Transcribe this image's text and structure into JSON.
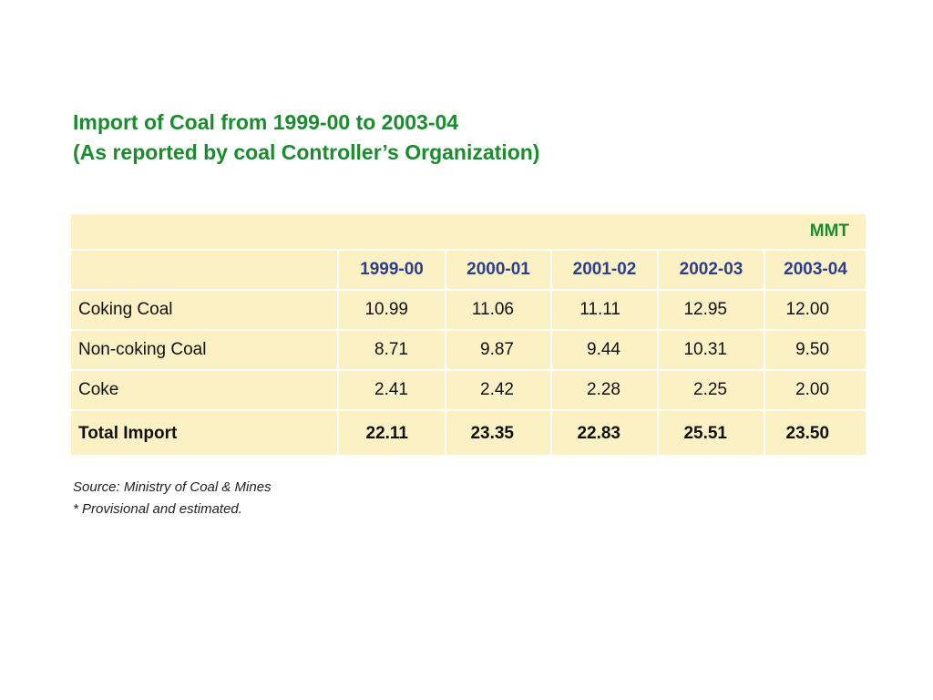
{
  "title": {
    "line1": "Import of Coal from 1999-00 to 2003-04",
    "line2": "(As reported by coal Controller’s Organization)"
  },
  "table": {
    "unit": "MMT",
    "columns": [
      "1999-00",
      "2000-01",
      "2001-02",
      "2002-03",
      "2003-04"
    ],
    "rows": [
      {
        "label": "Coking  Coal",
        "values": [
          "10.99",
          "11.06",
          "11.11",
          "12.95",
          "12.00"
        ]
      },
      {
        "label": "Non-coking  Coal",
        "values": [
          "8.71",
          "9.87",
          "9.44",
          "10.31",
          "9.50"
        ]
      },
      {
        "label": "Coke",
        "values": [
          "2.41",
          "2.42",
          "2.28",
          "2.25",
          "2.00"
        ]
      }
    ],
    "total": {
      "label": "Total Import",
      "values": [
        "22.11",
        "23.35",
        "22.83",
        "25.51",
        "23.50"
      ]
    }
  },
  "notes": {
    "source": "Source: Ministry of Coal & Mines",
    "footnote": "* Provisional and estimated."
  },
  "colors": {
    "title": "#1a8c2e",
    "year_header": "#2c3f8c",
    "table_bg": "#fcf1c4"
  }
}
